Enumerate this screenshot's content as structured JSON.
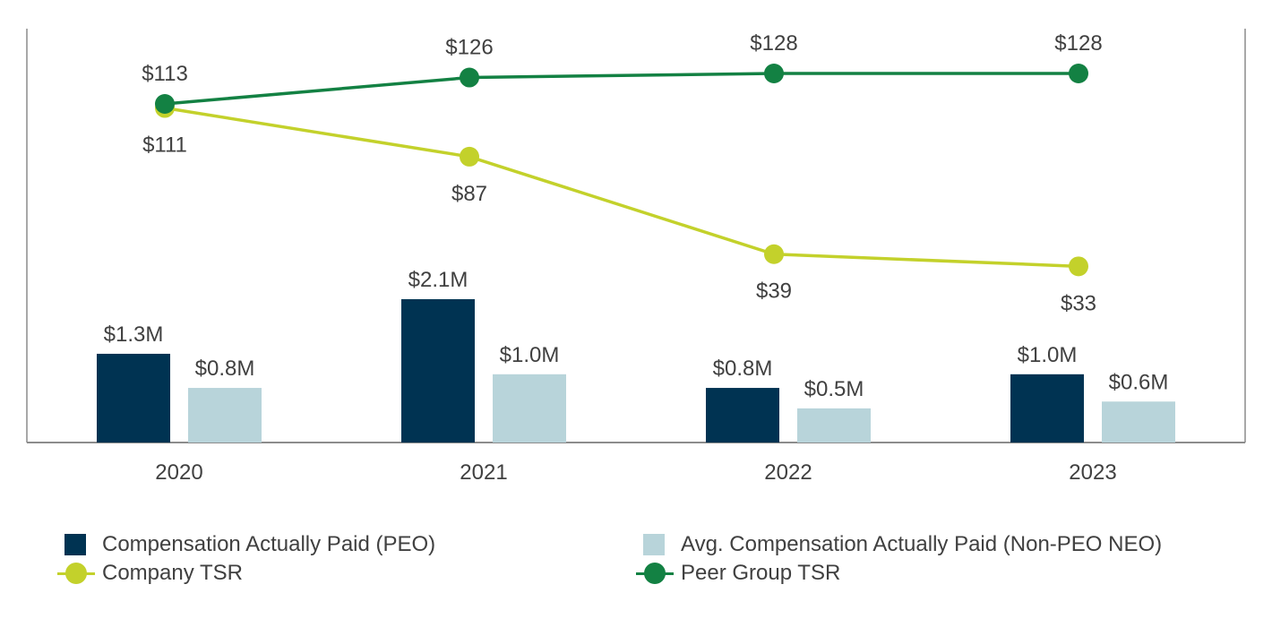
{
  "chart_data": {
    "type": "bar+line",
    "categories": [
      "2020",
      "2021",
      "2022",
      "2023"
    ],
    "bar_series": [
      {
        "name": "Compensation Actually Paid (PEO)",
        "color": "#003352",
        "values": [
          1.3,
          2.1,
          0.8,
          1.0
        ],
        "labels": [
          "$1.3M",
          "$2.1M",
          "$0.8M",
          "$1.0M"
        ]
      },
      {
        "name": "Avg. Compensation Actually Paid (Non-PEO NEO)",
        "color": "#b8d4da",
        "values": [
          0.8,
          1.0,
          0.5,
          0.6
        ],
        "labels": [
          "$0.8M",
          "$1.0M",
          "$0.5M",
          "$0.6M"
        ]
      }
    ],
    "line_series": [
      {
        "name": "Company TSR",
        "color": "#c3d12b",
        "values": [
          111,
          87,
          39,
          33
        ],
        "labels": [
          "$111",
          "$87",
          "$39",
          "$33"
        ],
        "label_position": "below"
      },
      {
        "name": "Peer Group TSR",
        "color": "#138143",
        "values": [
          113,
          126,
          128,
          128
        ],
        "labels": [
          "$113",
          "$126",
          "$128",
          "$128"
        ],
        "label_position": "above"
      }
    ],
    "bar_axis_range": [
      0,
      2.1
    ],
    "line_axis_range": [
      33,
      128
    ],
    "legend_position": "bottom",
    "grid": false
  }
}
